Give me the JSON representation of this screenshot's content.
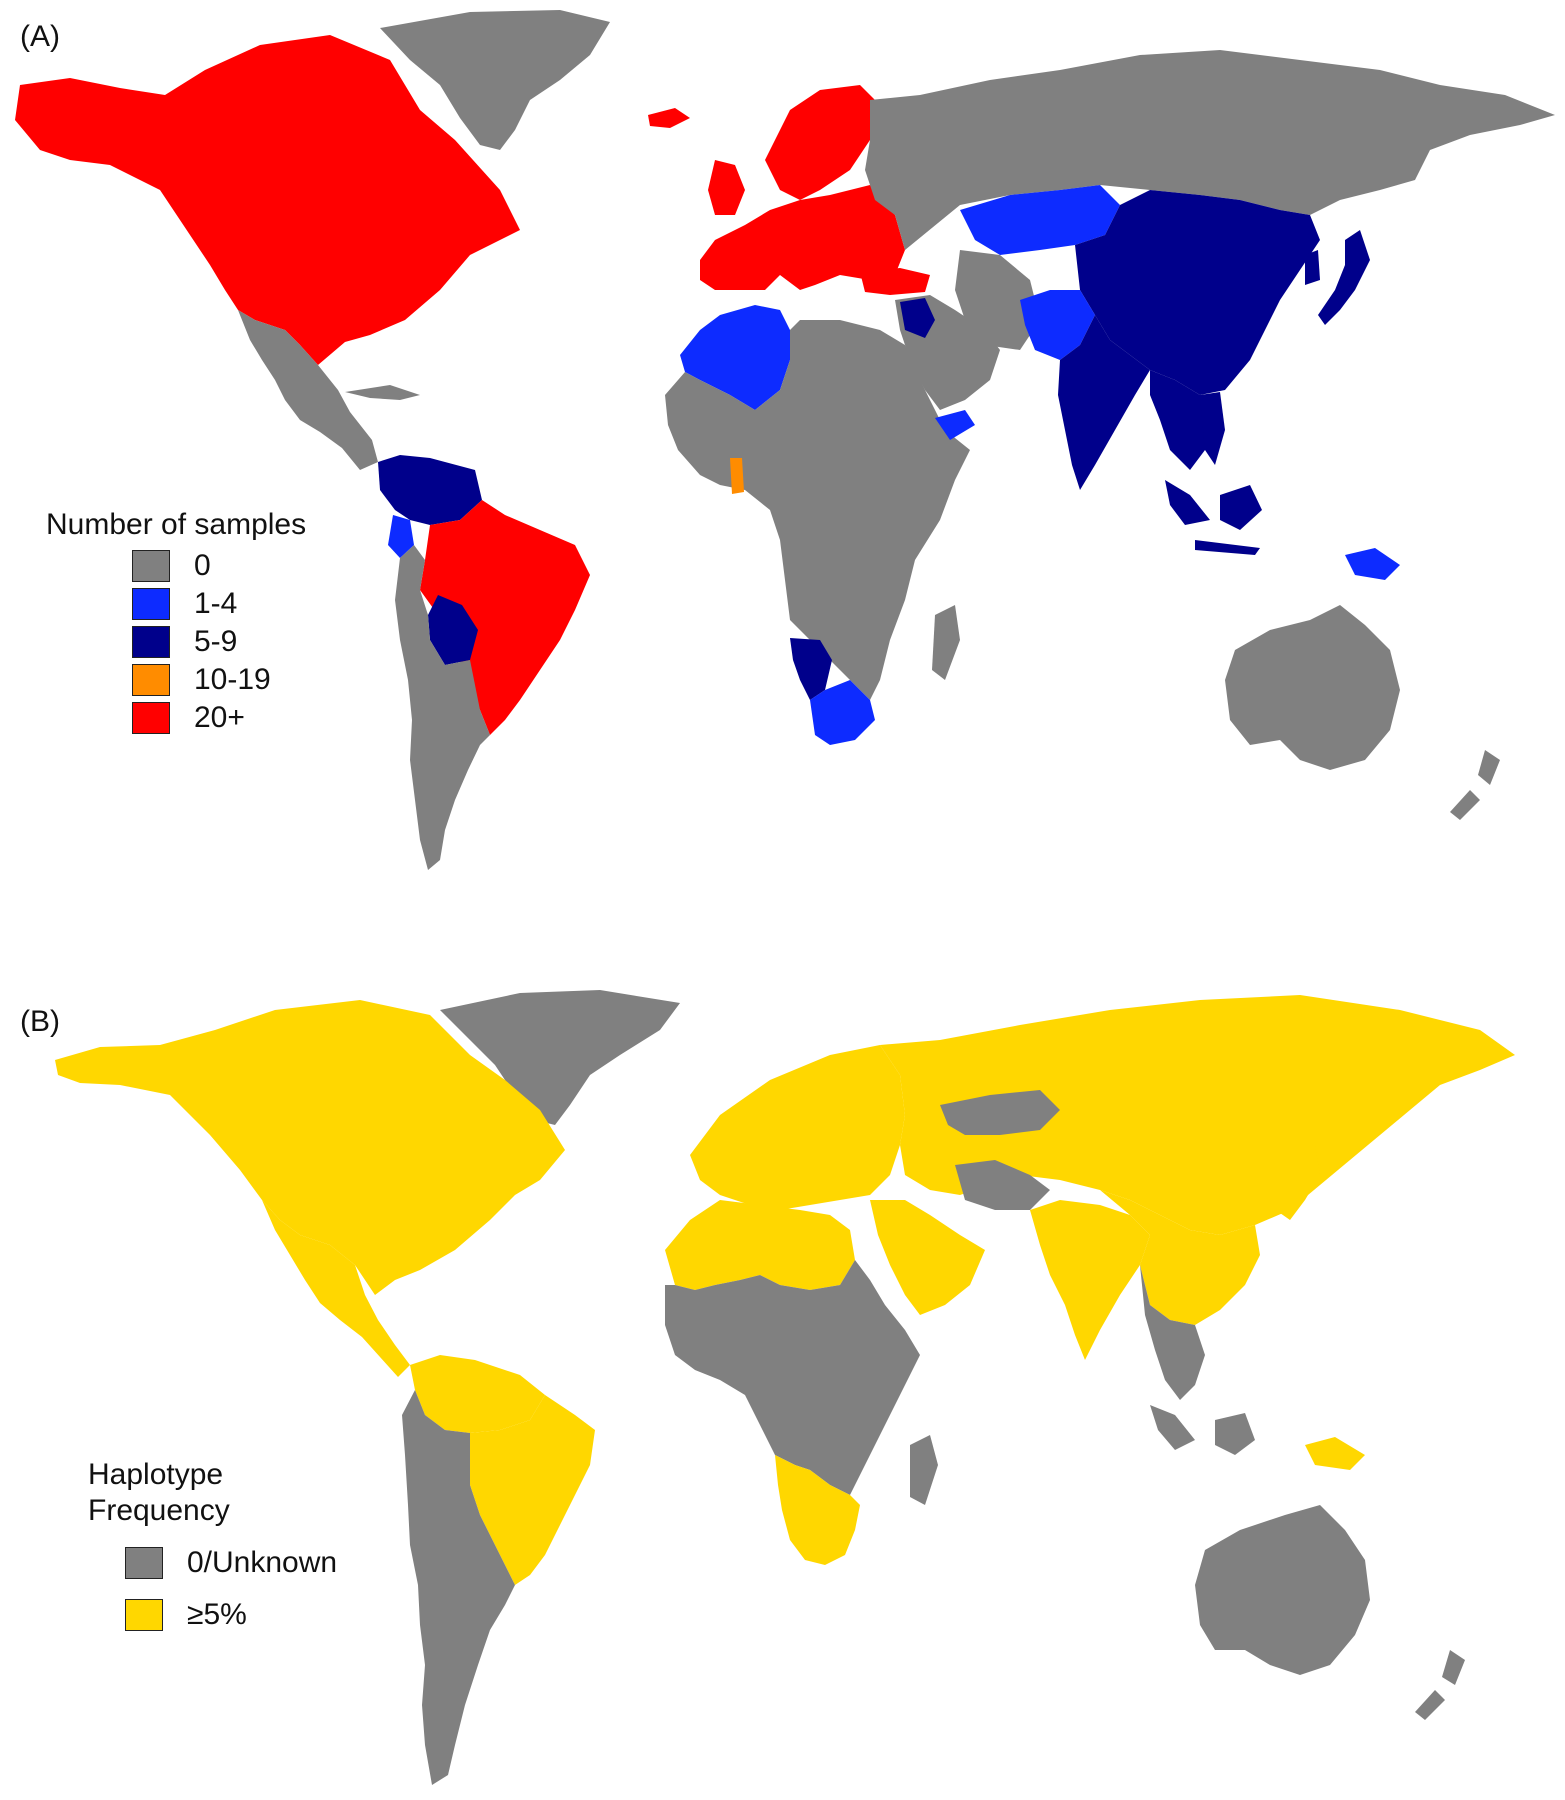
{
  "panels": [
    {
      "label": "(A)",
      "legend": {
        "title": "Number of samples",
        "items": [
          {
            "label": "0",
            "color": "#808080"
          },
          {
            "label": "1-4",
            "color": "#0d2bff"
          },
          {
            "label": "5-9",
            "color": "#00008b"
          },
          {
            "label": "10-19",
            "color": "#ff8c00"
          },
          {
            "label": "20+",
            "color": "#ff0000"
          }
        ]
      },
      "regions": {
        "north-america": "20+",
        "greenland": "0",
        "iceland": "20+",
        "central-america": "0",
        "colombia-venezuela": "5-9",
        "ecuador": "1-4",
        "brazil": "20+",
        "bolivia": "5-9",
        "south-america-rest": "0",
        "europe": "20+",
        "scandinavia": "20+",
        "russia": "0",
        "north-africa": "1-4",
        "nigeria": "10-19",
        "africa-rest": "0",
        "namibia": "5-9",
        "south-africa": "1-4",
        "middle-east": "0",
        "iran": "0",
        "levant": "5-9",
        "yemen": "1-4",
        "kazakhstan": "1-4",
        "china": "5-9",
        "pakistan": "1-4",
        "india": "5-9",
        "japan": "5-9",
        "southeast-asia": "5-9",
        "indonesia": "5-9",
        "papua-new-guinea": "1-4",
        "australia": "0",
        "new-zealand": "0",
        "madagascar": "0"
      }
    },
    {
      "label": "(B)",
      "legend": {
        "title_lines": [
          "Haplotype",
          "Frequency"
        ],
        "items": [
          {
            "label": "0/Unknown",
            "color": "#808080"
          },
          {
            "label": "≥5%",
            "color": "#ffd700"
          }
        ]
      },
      "regions": {
        "north-america": "≥5%",
        "greenland": "0/Unknown",
        "central-america": "≥5%",
        "south-america-north": "≥5%",
        "brazil": "≥5%",
        "peru-chile-argentina": "0/Unknown",
        "europe": "≥5%",
        "russia-asia": "≥5%",
        "north-africa": "≥5%",
        "arabia": "≥5%",
        "central-africa": "0/Unknown",
        "southern-africa": "≥5%",
        "india": "≥5%",
        "china": "≥5%",
        "kazakhstan": "0/Unknown",
        "iran": "0/Unknown",
        "southeast-asia": "0/Unknown",
        "indonesia": "0/Unknown",
        "papua-new-guinea": "≥5%",
        "australia": "0/Unknown",
        "new-zealand": "0/Unknown",
        "madagascar": "0/Unknown"
      }
    }
  ]
}
